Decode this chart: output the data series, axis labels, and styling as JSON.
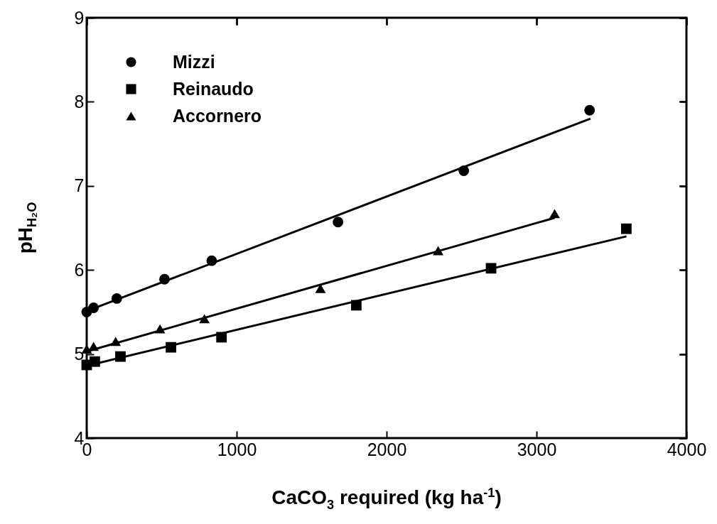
{
  "chart_data": {
    "type": "scatter",
    "xlabel": "CaCO$_{3}$ required (kg ha$^{-1}$)",
    "ylabel": "pH$_{H₂O}$",
    "xlim": [
      0,
      4000
    ],
    "ylim": [
      4,
      9
    ],
    "xticks": [
      0,
      1000,
      2000,
      3000,
      4000
    ],
    "yticks": [
      4,
      5,
      6,
      7,
      8,
      9
    ],
    "grid": false,
    "legend": "top left",
    "series": [
      {
        "name": "Mizzi",
        "marker": "circle",
        "color": "#000000",
        "x": [
          0,
          46,
          201,
          519,
          834,
          1676,
          2515,
          3354
        ],
        "values": [
          5.5,
          5.55,
          5.66,
          5.89,
          6.11,
          6.57,
          7.18,
          7.9
        ]
      },
      {
        "name": "Reinaudo",
        "marker": "square",
        "color": "#000000",
        "x": [
          0,
          54,
          225,
          562,
          899,
          1798,
          2697,
          3599
        ],
        "values": [
          4.87,
          4.91,
          4.97,
          5.08,
          5.2,
          5.58,
          6.02,
          6.49
        ]
      },
      {
        "name": "Accornero",
        "marker": "triangle",
        "color": "#000000",
        "x": [
          0,
          46,
          193,
          489,
          785,
          1559,
          2344,
          3121
        ],
        "values": [
          5.06,
          5.09,
          5.15,
          5.3,
          5.42,
          5.78,
          6.23,
          6.67
        ]
      },
      {
        "type": "line",
        "color": "#000000",
        "x": [
          0,
          3360
        ],
        "values": [
          5.51,
          7.8
        ]
      },
      {
        "type": "line",
        "color": "#000000",
        "x": [
          0,
          3600
        ],
        "values": [
          4.86,
          6.4
        ]
      },
      {
        "type": "line",
        "color": "#000000",
        "x": [
          0,
          3121
        ],
        "values": [
          5.03,
          6.62
        ]
      }
    ]
  }
}
